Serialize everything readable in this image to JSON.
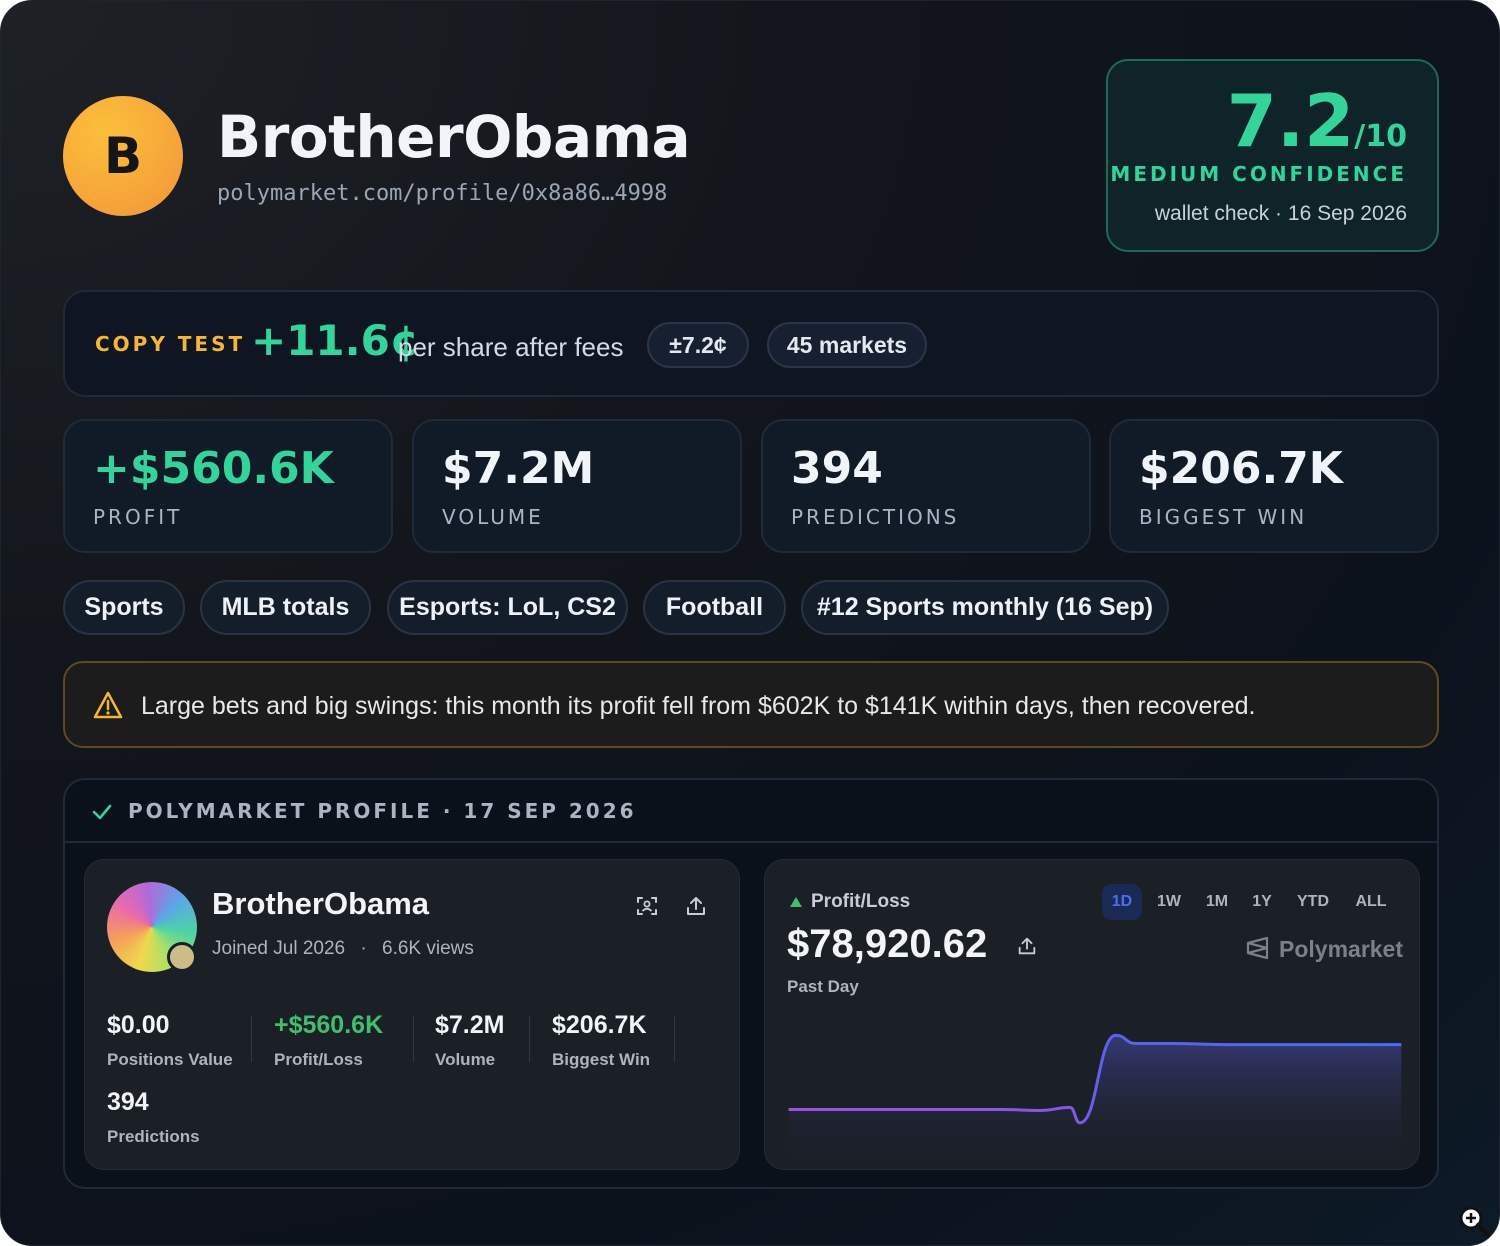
{
  "header": {
    "avatar_letter": "B",
    "name": "BrotherObama",
    "url": "polymarket.com/profile/0x8a86…4998"
  },
  "score": {
    "value": "7.2",
    "denominator": "/10",
    "confidence": "MEDIUM CONFIDENCE",
    "wallet_check": "wallet check · 16 Sep 2026"
  },
  "copy_test": {
    "label": "COPY TEST",
    "value": "+11.6¢",
    "suffix": "per share after fees",
    "margin": "±7.2¢",
    "markets": "45 markets"
  },
  "stats": [
    {
      "value": "+$560.6K",
      "label": "PROFIT"
    },
    {
      "value": "$7.2M",
      "label": "VOLUME"
    },
    {
      "value": "394",
      "label": "PREDICTIONS"
    },
    {
      "value": "$206.7K",
      "label": "BIGGEST WIN"
    }
  ],
  "tags": [
    "Sports",
    "MLB totals",
    "Esports: LoL, CS2",
    "Football",
    "#12 Sports monthly (16 Sep)"
  ],
  "warning": {
    "text": "Large bets and big swings: this month its profit fell from $602K to $141K within days, then recovered."
  },
  "profile": {
    "title": "POLYMARKET PROFILE · 17 SEP 2026",
    "card": {
      "name": "BrotherObama",
      "joined": "Joined Jul 2026",
      "views": "6.6K views",
      "stats": [
        {
          "value": "$0.00",
          "label": "Positions Value"
        },
        {
          "value": "+$560.6K",
          "label": "Profit/Loss"
        },
        {
          "value": "$7.2M",
          "label": "Volume"
        },
        {
          "value": "$206.7K",
          "label": "Biggest Win"
        },
        {
          "value": "394",
          "label": "Predictions"
        }
      ]
    },
    "pnl": {
      "label": "Profit/Loss",
      "value": "$78,920.62",
      "period": "Past Day",
      "ranges": [
        "1D",
        "1W",
        "1M",
        "1Y",
        "YTD",
        "ALL"
      ],
      "active_range": "1D",
      "brand": "Polymarket",
      "line_color": "#4b6ef0",
      "chart_series": [
        0.18,
        0.18,
        0.18,
        0.18,
        0.17,
        0.2,
        0.05,
        0.9,
        0.82,
        0.82,
        0.81,
        0.81,
        0.81,
        0.81
      ]
    }
  },
  "colors": {
    "accent_green": "#34d399",
    "accent_amber": "#f5b53b",
    "pm_green": "#3fbf6e"
  }
}
